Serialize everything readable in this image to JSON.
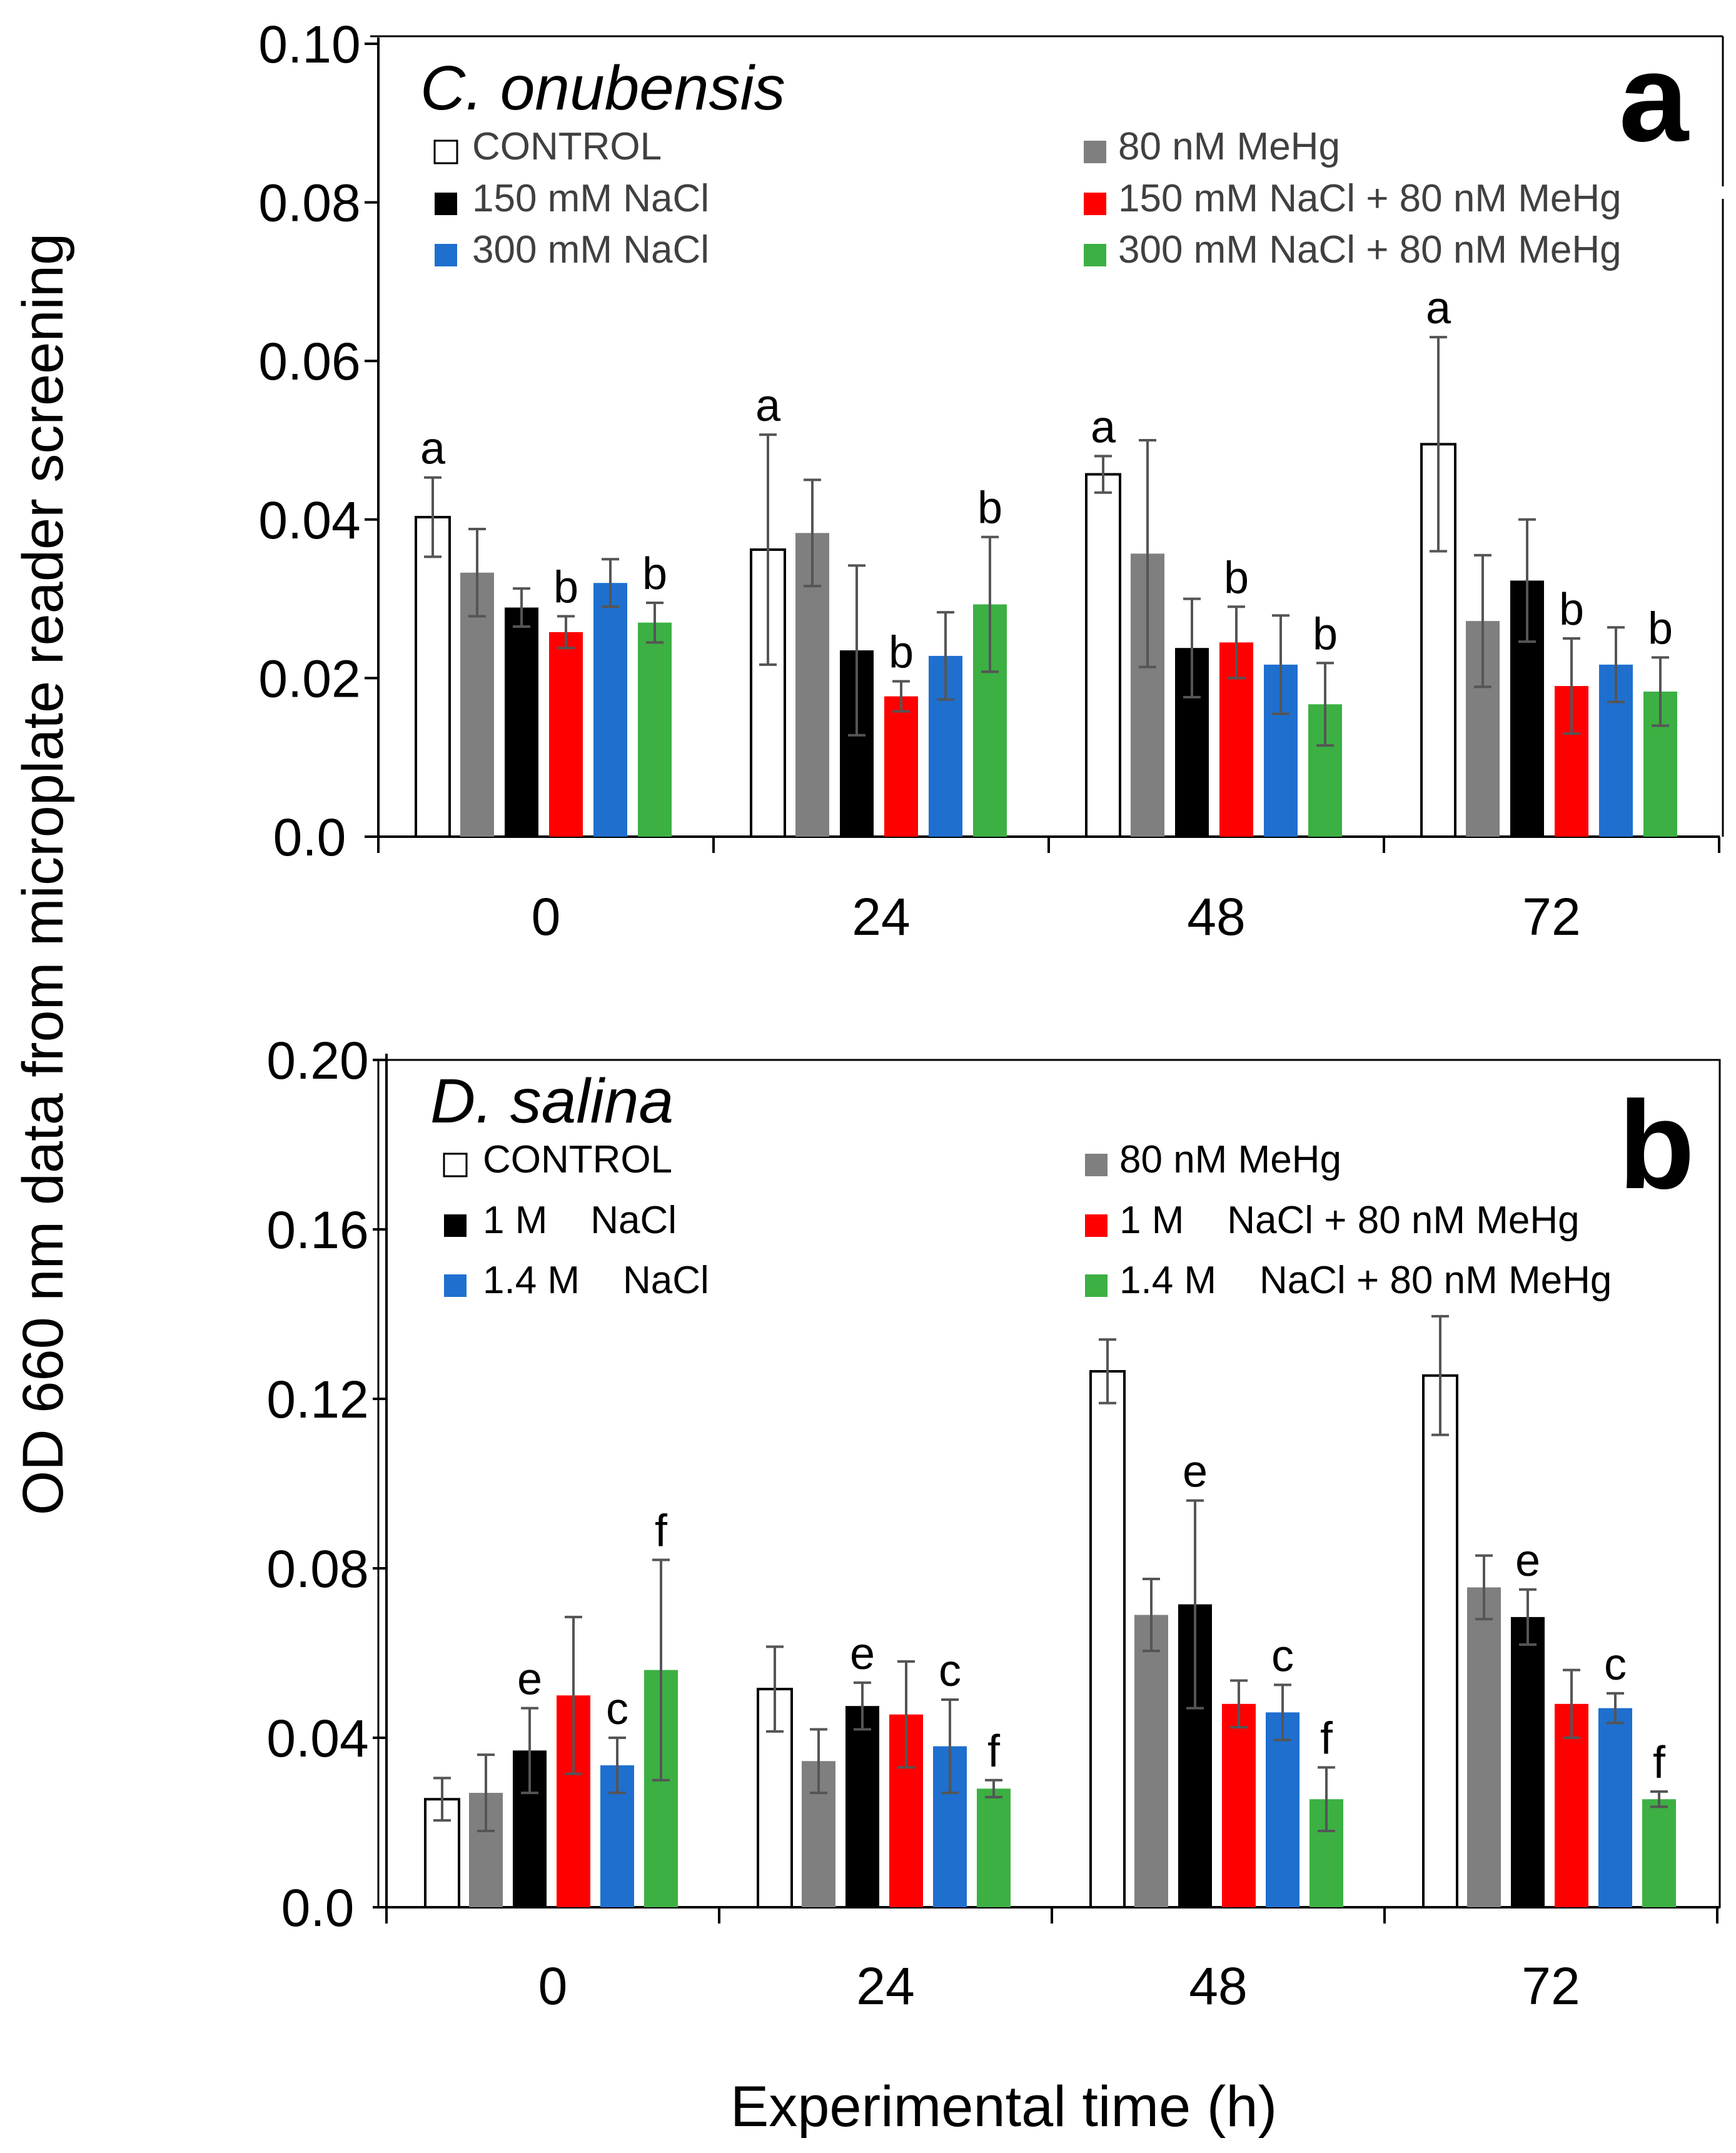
{
  "y_axis_title": "OD 660 nm data from microplate reader screening",
  "x_axis_title": "Experimental time (h)",
  "chart_data": [
    {
      "type": "bar",
      "panel": "a",
      "title": "C. onubensis",
      "categories": [
        "0",
        "24",
        "48",
        "72"
      ],
      "ylim": [
        0,
        0.1
      ],
      "yticks": [
        0,
        0.02,
        0.04,
        0.06,
        0.08,
        0.1
      ],
      "ytick_labels": [
        "0.0",
        "0.02",
        "0.04",
        "0.06",
        "0.08",
        "0.10"
      ],
      "series": [
        {
          "name": "CONTROL",
          "color": "#ffffff",
          "values": [
            0.0403,
            0.0362,
            0.0457,
            0.0495
          ],
          "errors": [
            0.005,
            0.0145,
            0.0023,
            0.0135
          ]
        },
        {
          "name": "80 nM MeHg",
          "color": "#7f7f7f",
          "values": [
            0.0333,
            0.0383,
            0.0357,
            0.0272
          ],
          "errors": [
            0.0055,
            0.0067,
            0.0143,
            0.0083
          ]
        },
        {
          "name": "150 mM NaCl",
          "color": "#000000",
          "values": [
            0.0289,
            0.0235,
            0.0238,
            0.0323
          ],
          "errors": [
            0.0024,
            0.0107,
            0.0062,
            0.0077
          ]
        },
        {
          "name": "150 mM NaCl + 80 nM MeHg",
          "color": "#ff0000",
          "values": [
            0.0258,
            0.0177,
            0.0245,
            0.019
          ],
          "errors": [
            0.002,
            0.0019,
            0.0045,
            0.006
          ]
        },
        {
          "name": "300 mM NaCl",
          "color": "#1f6fcf",
          "values": [
            0.032,
            0.0228,
            0.0217,
            0.0217
          ],
          "errors": [
            0.003,
            0.0055,
            0.0062,
            0.0047
          ]
        },
        {
          "name": "300 mM NaCl + 80 nM MeHg",
          "color": "#3cb043",
          "values": [
            0.027,
            0.0293,
            0.0167,
            0.0183
          ],
          "errors": [
            0.0025,
            0.0085,
            0.0052,
            0.0043
          ]
        }
      ],
      "annotations": [
        {
          "text": "a",
          "group": 0,
          "series": 0
        },
        {
          "text": "b",
          "group": 0,
          "series": 3
        },
        {
          "text": "b",
          "group": 0,
          "series": 5
        },
        {
          "text": "a",
          "group": 1,
          "series": 0
        },
        {
          "text": "b",
          "group": 1,
          "series": 3
        },
        {
          "text": "b",
          "group": 1,
          "series": 5
        },
        {
          "text": "a",
          "group": 2,
          "series": 0
        },
        {
          "text": "b",
          "group": 2,
          "series": 3
        },
        {
          "text": "b",
          "group": 2,
          "series": 5
        },
        {
          "text": "a",
          "group": 3,
          "series": 0
        },
        {
          "text": "b",
          "group": 3,
          "series": 3
        },
        {
          "text": "b",
          "group": 3,
          "series": 5
        }
      ],
      "legend": {
        "left": [
          {
            "series": 0,
            "label": "CONTROL"
          },
          {
            "series": 2,
            "label": "150 mM NaCl"
          },
          {
            "series": 4,
            "label": "300 mM NaCl"
          }
        ],
        "right": [
          {
            "series": 1,
            "label": "80 nM MeHg"
          },
          {
            "series": 3,
            "label": "150 mM NaCl + 80 nM MeHg"
          },
          {
            "series": 5,
            "label": "300 mM NaCl + 80 nM MeHg"
          }
        ]
      }
    },
    {
      "type": "bar",
      "panel": "b",
      "title": "D. salina",
      "categories": [
        "0",
        "24",
        "48",
        "72"
      ],
      "ylim": [
        0,
        0.2
      ],
      "yticks": [
        0,
        0.04,
        0.08,
        0.12,
        0.16,
        0.2
      ],
      "ytick_labels": [
        "0.0",
        "0.04",
        "0.08",
        "0.12",
        "0.16",
        "0.20"
      ],
      "series": [
        {
          "name": "CONTROL",
          "color": "#ffffff",
          "values": [
            0.0255,
            0.0515,
            0.1265,
            0.1255
          ],
          "errors": [
            0.005,
            0.01,
            0.0075,
            0.014
          ]
        },
        {
          "name": "80 nM MeHg",
          "color": "#7f7f7f",
          "values": [
            0.027,
            0.0345,
            0.069,
            0.0755
          ],
          "errors": [
            0.009,
            0.0075,
            0.0085,
            0.0075
          ]
        },
        {
          "name": "1 M NaCl",
          "color": "#000000",
          "values": [
            0.037,
            0.0475,
            0.0715,
            0.0685
          ],
          "errors": [
            0.01,
            0.0055,
            0.0245,
            0.0065
          ]
        },
        {
          "name": "1 M NaCl + 80 nM MeHg",
          "color": "#ff0000",
          "values": [
            0.05,
            0.0455,
            0.048,
            0.048
          ],
          "errors": [
            0.0185,
            0.0125,
            0.0055,
            0.008
          ]
        },
        {
          "name": "1.4 M NaCl",
          "color": "#1f6fcf",
          "values": [
            0.0335,
            0.038,
            0.046,
            0.047
          ],
          "errors": [
            0.0065,
            0.011,
            0.0065,
            0.0035
          ]
        },
        {
          "name": "1.4 M NaCl + 80 nM MeHg",
          "color": "#3cb043",
          "values": [
            0.056,
            0.028,
            0.0255,
            0.0255
          ],
          "errors": [
            0.026,
            0.002,
            0.0075,
            0.0018
          ]
        }
      ],
      "annotations": [
        {
          "text": "e",
          "group": 0,
          "series": 2
        },
        {
          "text": "c",
          "group": 0,
          "series": 4
        },
        {
          "text": "f",
          "group": 0,
          "series": 5
        },
        {
          "text": "e",
          "group": 1,
          "series": 2
        },
        {
          "text": "c",
          "group": 1,
          "series": 4
        },
        {
          "text": "f",
          "group": 1,
          "series": 5
        },
        {
          "text": "e",
          "group": 2,
          "series": 2
        },
        {
          "text": "c",
          "group": 2,
          "series": 4
        },
        {
          "text": "f",
          "group": 2,
          "series": 5
        },
        {
          "text": "e",
          "group": 3,
          "series": 2
        },
        {
          "text": "c",
          "group": 3,
          "series": 4
        },
        {
          "text": "f",
          "group": 3,
          "series": 5
        }
      ],
      "legend": {
        "left": [
          {
            "series": 0,
            "label": "CONTROL"
          },
          {
            "series": 2,
            "label": "1 M    NaCl"
          },
          {
            "series": 4,
            "label": "1.4 M    NaCl"
          }
        ],
        "right": [
          {
            "series": 1,
            "label": "80 nM MeHg"
          },
          {
            "series": 3,
            "label": "1 M    NaCl + 80 nM MeHg"
          },
          {
            "series": 5,
            "label": "1.4 M    NaCl + 80 nM MeHg"
          }
        ]
      }
    }
  ]
}
